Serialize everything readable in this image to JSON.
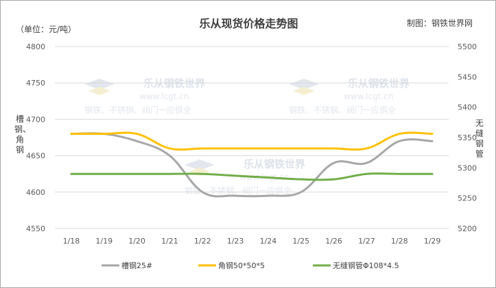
{
  "chart_data": {
    "type": "line",
    "title": "乐从现货价格走势图",
    "unit_label": "（单位：元/吨）",
    "maker_label": "制图：钢铁世界网",
    "ylabel_left": "槽钢、角钢",
    "ylabel_right": "无缝钢管",
    "categories": [
      "1/18",
      "1/19",
      "1/20",
      "1/21",
      "1/22",
      "1/23",
      "1/24",
      "1/25",
      "1/26",
      "1/27",
      "1/28",
      "1/29"
    ],
    "ylim_left": [
      4550,
      4800
    ],
    "yticks_left": [
      4550,
      4600,
      4650,
      4700,
      4750,
      4800
    ],
    "ylim_right": [
      5200,
      5500
    ],
    "yticks_right": [
      5200,
      5250,
      5300,
      5350,
      5400,
      5450,
      5500
    ],
    "grid": true,
    "legend_position": "bottom",
    "series": [
      {
        "name": "槽钢25#",
        "axis": "left",
        "color": "#a6a6a6",
        "values": [
          4680,
          4680,
          4670,
          4650,
          4600,
          4595,
          4595,
          4600,
          4640,
          4640,
          4670,
          4670
        ]
      },
      {
        "name": "角钢50*50*5",
        "axis": "left",
        "color": "#ffc000",
        "values": [
          4680,
          4680,
          4680,
          4660,
          4660,
          4660,
          4660,
          4660,
          4660,
          4660,
          4680,
          4680
        ]
      },
      {
        "name": "无缝钢管Φ108*4.5",
        "axis": "right",
        "color": "#70ad47",
        "values": [
          5290,
          5290,
          5290,
          5290,
          5290,
          5287,
          5284,
          5281,
          5281,
          5290,
          5290,
          5290
        ]
      }
    ]
  },
  "watermark": {
    "brand": "乐从钢铁世界",
    "site": "www.lcgt.cn",
    "slogan": "钢铁、不锈钢、阀门一应俱全"
  }
}
